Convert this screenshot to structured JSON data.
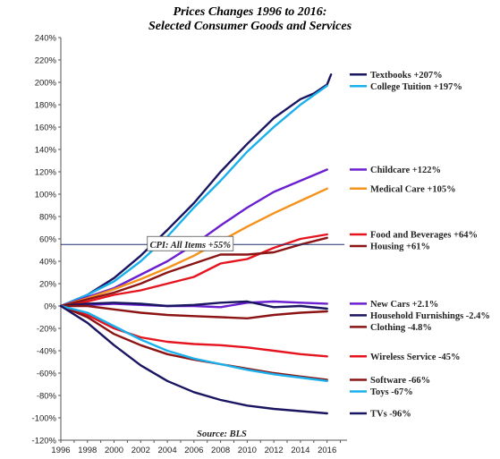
{
  "chart_data": {
    "type": "line",
    "title": "Prices Changes 1996 to 2016:",
    "subtitle": "Selected Consumer Goods and Services",
    "xlabel": "",
    "ylabel": "",
    "xlim": [
      1996,
      2017.5
    ],
    "ylim": [
      -120,
      240
    ],
    "x_ticks": [
      "1996",
      "1998",
      "2000",
      "2002",
      "2004",
      "2006",
      "2008",
      "2010",
      "2012",
      "2014",
      "2016"
    ],
    "y_ticks": [
      "240%",
      "220%",
      "200%",
      "180%",
      "160%",
      "140%",
      "120%",
      "100%",
      "80%",
      "60%",
      "40%",
      "20%",
      "0%",
      "-20%",
      "-40%",
      "-60%",
      "-80%",
      "-100%",
      "-120%"
    ],
    "grid": false,
    "source": "Source: BLS",
    "reference_line": {
      "label": "CPI: All Items +55%",
      "value": 55,
      "color": "#1f2f6b"
    },
    "series": [
      {
        "name": "Textbooks +207%",
        "color": "#1a1560",
        "x": [
          1996,
          1998,
          2000,
          2002,
          2004,
          2006,
          2008,
          2010,
          2012,
          2014,
          2015,
          2016,
          2016.3
        ],
        "y": [
          0,
          10,
          25,
          45,
          68,
          92,
          120,
          145,
          168,
          185,
          190,
          198,
          207
        ]
      },
      {
        "name": "College Tuition +197%",
        "color": "#1ab0ec",
        "x": [
          1996,
          1998,
          2000,
          2002,
          2004,
          2006,
          2008,
          2010,
          2012,
          2014,
          2016
        ],
        "y": [
          0,
          10,
          22,
          40,
          62,
          88,
          112,
          138,
          160,
          180,
          197
        ]
      },
      {
        "name": "Childcare +122%",
        "color": "#6a1fd0",
        "x": [
          1996,
          1998,
          2000,
          2002,
          2004,
          2006,
          2008,
          2010,
          2012,
          2014,
          2016
        ],
        "y": [
          0,
          8,
          16,
          28,
          40,
          55,
          72,
          88,
          102,
          112,
          122
        ]
      },
      {
        "name": "Medical Care +105%",
        "color": "#f5921b",
        "x": [
          1996,
          1998,
          2000,
          2002,
          2004,
          2006,
          2008,
          2010,
          2012,
          2014,
          2016
        ],
        "y": [
          0,
          7,
          15,
          24,
          34,
          45,
          58,
          71,
          83,
          94,
          105
        ]
      },
      {
        "name": "Food and Beverages +64%",
        "color": "#e5141e",
        "x": [
          1996,
          1998,
          2000,
          2002,
          2004,
          2006,
          2008,
          2010,
          2012,
          2014,
          2016
        ],
        "y": [
          0,
          4,
          10,
          14,
          20,
          26,
          38,
          42,
          52,
          60,
          64
        ]
      },
      {
        "name": "Housing +61%",
        "color": "#8c1414",
        "x": [
          1996,
          1998,
          2000,
          2002,
          2004,
          2006,
          2008,
          2010,
          2012,
          2014,
          2016
        ],
        "y": [
          0,
          6,
          12,
          20,
          30,
          38,
          46,
          46,
          48,
          55,
          61
        ]
      },
      {
        "name": "New Cars +2.1%",
        "color": "#6a1fd0",
        "x": [
          1996,
          1998,
          2000,
          2002,
          2004,
          2006,
          2008,
          2010,
          2012,
          2014,
          2016
        ],
        "y": [
          0,
          1,
          2,
          1,
          0,
          0,
          -1,
          3,
          4,
          3,
          2.1
        ]
      },
      {
        "name": "Household Furnishings -2.4%",
        "color": "#1a1560",
        "x": [
          1996,
          1998,
          2000,
          2002,
          2004,
          2006,
          2008,
          2010,
          2012,
          2014,
          2016
        ],
        "y": [
          0,
          2,
          3,
          2,
          0,
          1,
          3,
          4,
          -1,
          0,
          -2.4
        ]
      },
      {
        "name": "Clothing -4.8%",
        "color": "#8c1414",
        "x": [
          1996,
          1998,
          2000,
          2002,
          2004,
          2006,
          2008,
          2010,
          2012,
          2014,
          2016
        ],
        "y": [
          0,
          0,
          -3,
          -6,
          -8,
          -9,
          -10,
          -11,
          -8,
          -6,
          -4.8
        ]
      },
      {
        "name": "Wireless Service -45%",
        "color": "#e5141e",
        "x": [
          1996,
          1998,
          2000,
          2002,
          2004,
          2006,
          2008,
          2010,
          2012,
          2014,
          2016
        ],
        "y": [
          0,
          -8,
          -20,
          -28,
          -32,
          -34,
          -35,
          -37,
          -40,
          -43,
          -45
        ]
      },
      {
        "name": "Software -66%",
        "color": "#8c1414",
        "x": [
          1996,
          1998,
          2000,
          2002,
          2004,
          2006,
          2008,
          2010,
          2012,
          2014,
          2016
        ],
        "y": [
          0,
          -10,
          -25,
          -35,
          -43,
          -48,
          -52,
          -56,
          -60,
          -63,
          -66
        ]
      },
      {
        "name": "Toys -67%",
        "color": "#1ab0ec",
        "x": [
          1996,
          1998,
          2000,
          2002,
          2004,
          2006,
          2008,
          2010,
          2012,
          2014,
          2016
        ],
        "y": [
          0,
          -6,
          -18,
          -30,
          -40,
          -47,
          -52,
          -57,
          -61,
          -64,
          -67
        ]
      },
      {
        "name": "TVs -96%",
        "color": "#1a1560",
        "x": [
          1996,
          1998,
          2000,
          2002,
          2004,
          2006,
          2008,
          2010,
          2012,
          2014,
          2016
        ],
        "y": [
          0,
          -15,
          -35,
          -53,
          -67,
          -77,
          -84,
          -89,
          -92,
          -94,
          -96
        ]
      }
    ]
  }
}
